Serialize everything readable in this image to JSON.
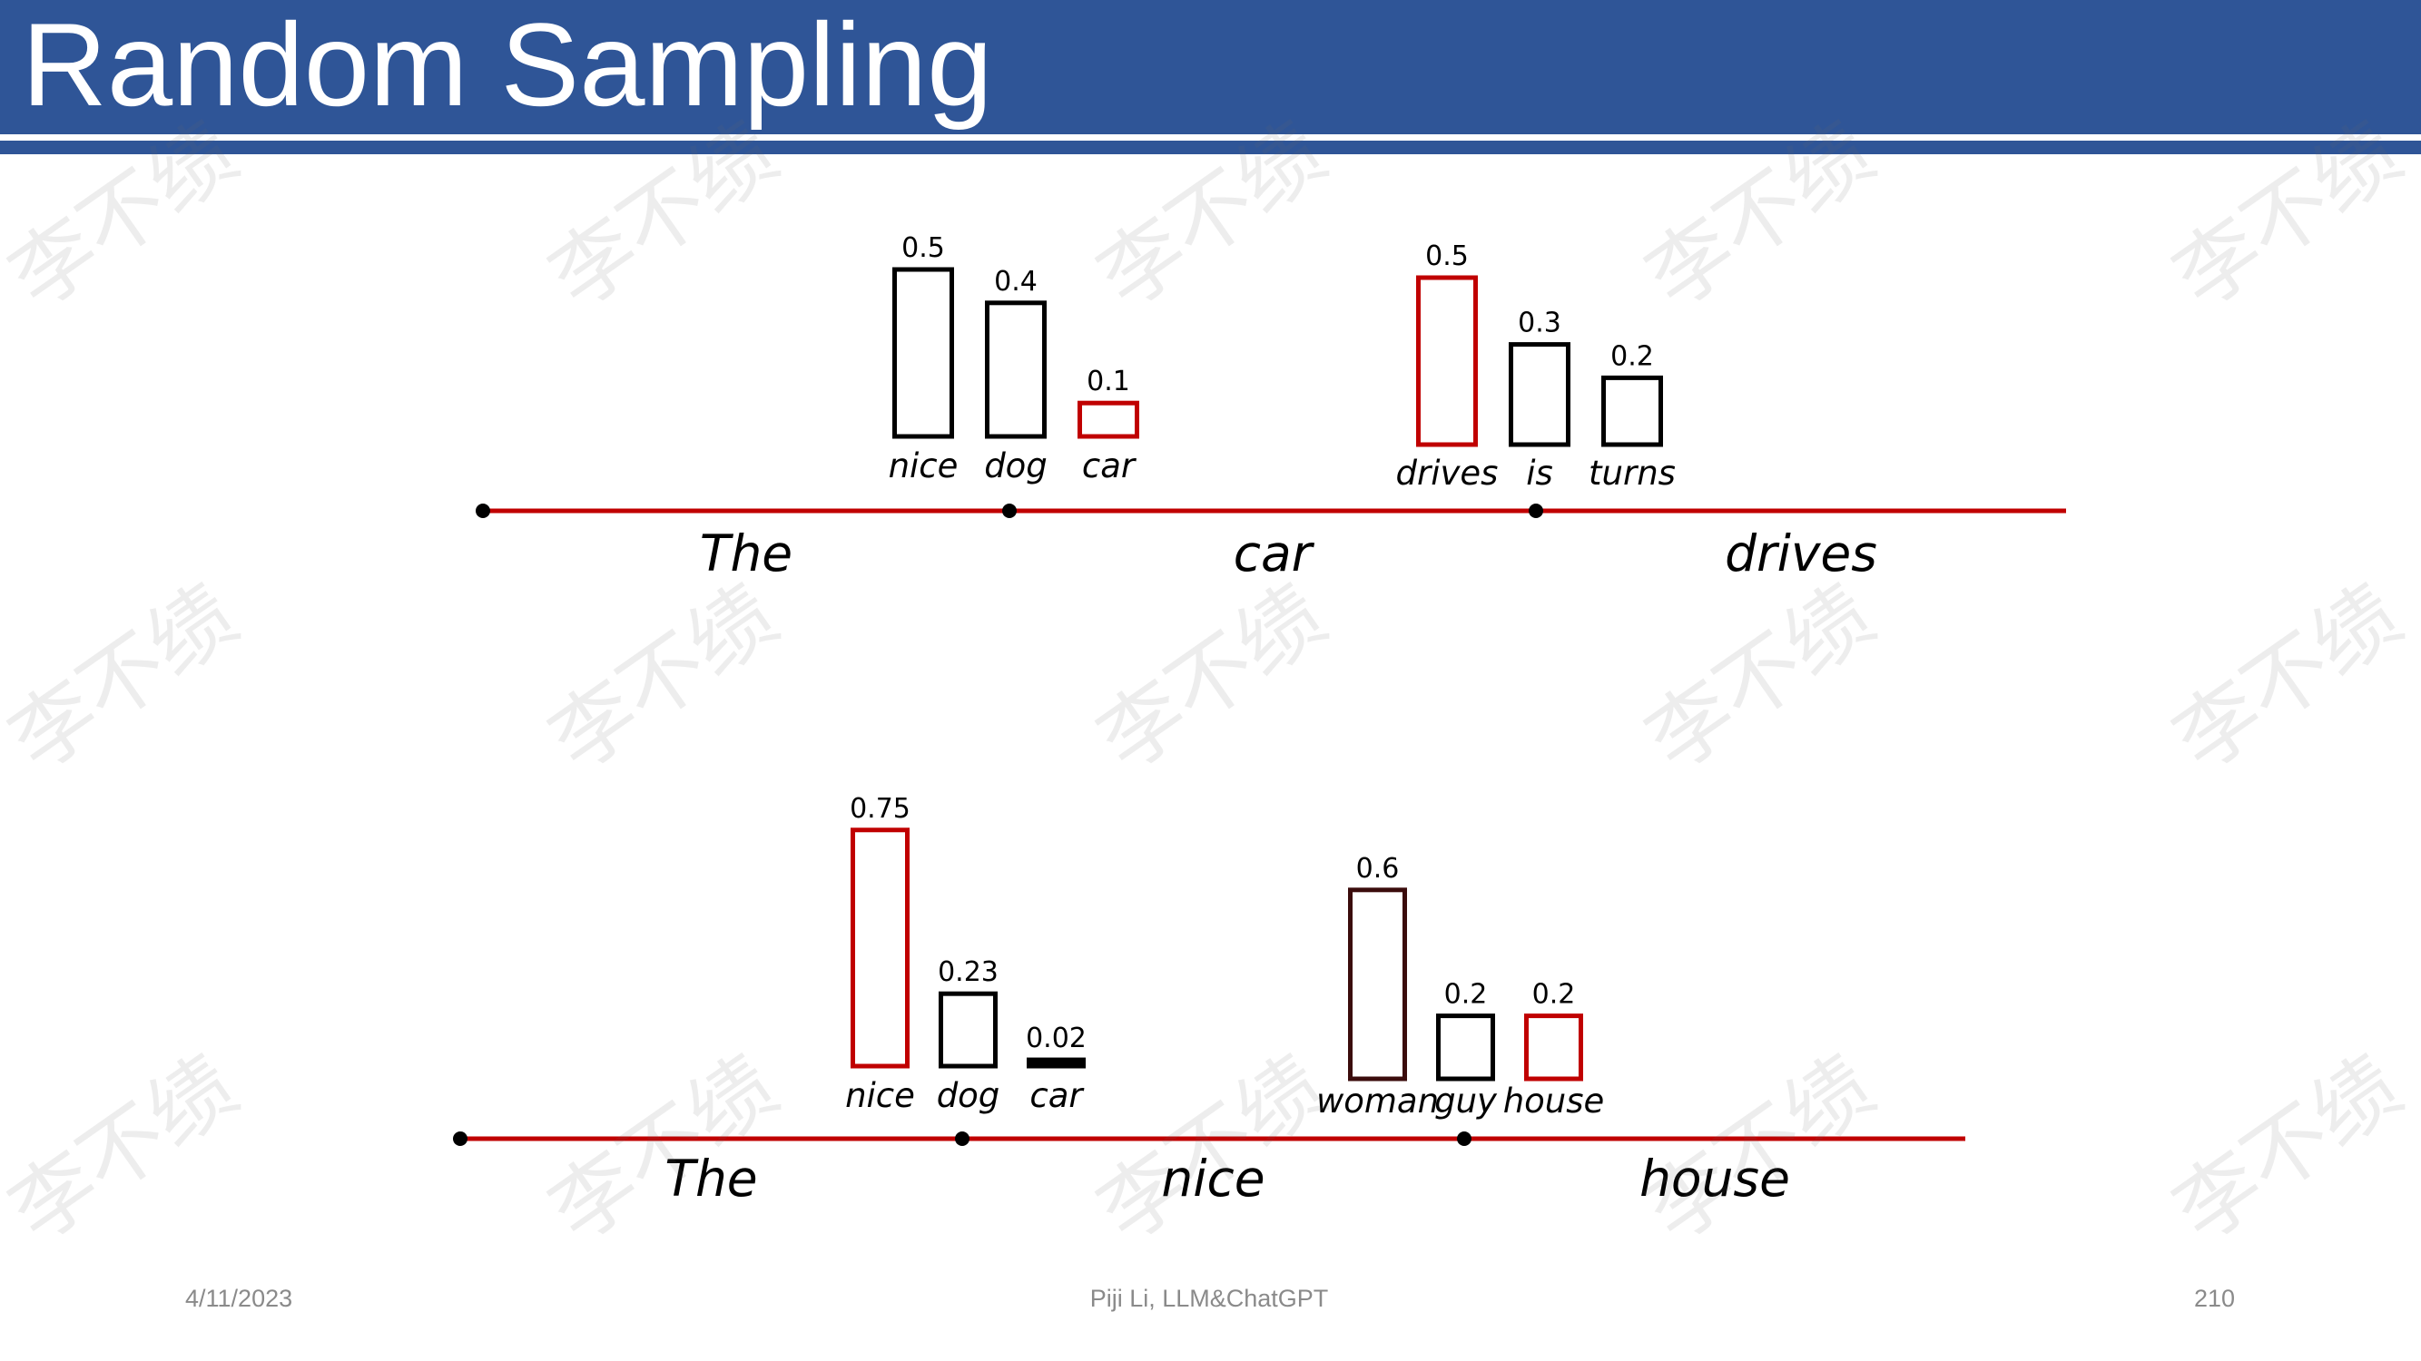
{
  "title": "Random Sampling",
  "watermark": "李不绩",
  "colors": {
    "header": "#2f5597",
    "sequence_line": "#c00000",
    "selected": "#c00000",
    "default": "#000000",
    "footer_text": "#8a8a8a"
  },
  "diagrams": [
    {
      "sequence": [
        "The",
        "car",
        "drives"
      ],
      "steps": [
        {
          "candidates": [
            {
              "word": "nice",
              "prob": "0.5",
              "color": "#000000",
              "selected": false
            },
            {
              "word": "dog",
              "prob": "0.4",
              "color": "#000000",
              "selected": false
            },
            {
              "word": "car",
              "prob": "0.1",
              "color": "#c00000",
              "selected": true
            }
          ]
        },
        {
          "candidates": [
            {
              "word": "drives",
              "prob": "0.5",
              "color": "#c00000",
              "selected": true
            },
            {
              "word": "is",
              "prob": "0.3",
              "color": "#000000",
              "selected": false
            },
            {
              "word": "turns",
              "prob": "0.2",
              "color": "#000000",
              "selected": false
            }
          ]
        }
      ]
    },
    {
      "sequence": [
        "The",
        "nice",
        "house"
      ],
      "steps": [
        {
          "candidates": [
            {
              "word": "nice",
              "prob": "0.75",
              "color": "#c00000",
              "selected": true
            },
            {
              "word": "dog",
              "prob": "0.23",
              "color": "#000000",
              "selected": false
            },
            {
              "word": "car",
              "prob": "0.02",
              "color": "#000000",
              "selected": false
            }
          ]
        },
        {
          "candidates": [
            {
              "word": "woman",
              "prob": "0.6",
              "color": "#3b0c0c",
              "selected": false
            },
            {
              "word": "guy",
              "prob": "0.2",
              "color": "#000000",
              "selected": false
            },
            {
              "word": "house",
              "prob": "0.2",
              "color": "#c00000",
              "selected": true
            }
          ]
        }
      ]
    }
  ],
  "footer": {
    "date": "4/11/2023",
    "author": "Piji Li, LLM&ChatGPT",
    "page": "210"
  }
}
